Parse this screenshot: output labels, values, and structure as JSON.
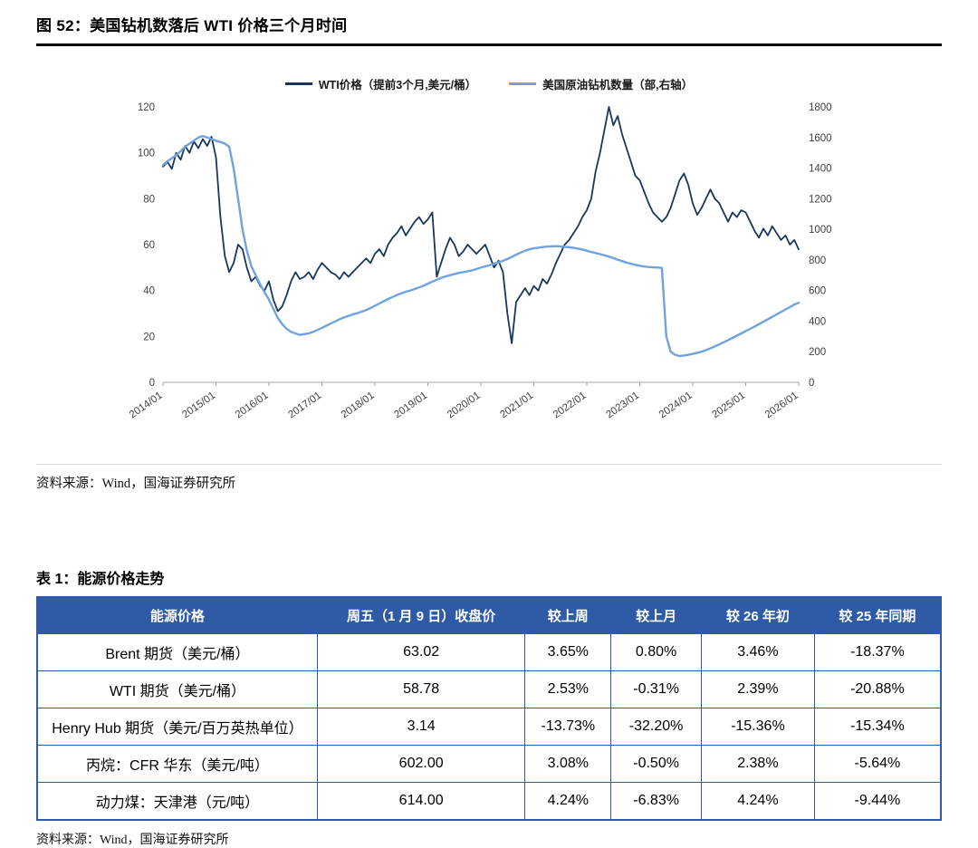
{
  "figure": {
    "title": "图 52：美国钻机数落后 WTI 价格三个月时间",
    "source": "资料来源：Wind，国海证券研究所"
  },
  "chart_data": {
    "type": "line",
    "title": "图 52：美国钻机数落后 WTI 价格三个月时间",
    "x_start": "2014/01",
    "x_step_months": 1,
    "x_tick_labels": [
      "2014/01",
      "2015/01",
      "2016/01",
      "2017/01",
      "2018/01",
      "2019/01",
      "2020/01",
      "2021/01",
      "2022/01",
      "2023/01",
      "2024/01",
      "2025/01",
      "2026/01"
    ],
    "left_axis": {
      "min": 0,
      "max": 120,
      "ticks": [
        0,
        20,
        40,
        60,
        80,
        100,
        120
      ]
    },
    "right_axis": {
      "min": 0,
      "max": 1800,
      "ticks": [
        0,
        200,
        400,
        600,
        800,
        1000,
        1200,
        1400,
        1600,
        1800
      ]
    },
    "grid": false,
    "legend_position": "top",
    "series": [
      {
        "name": "WTI价格（提前3个月,美元/桶）",
        "axis": "left",
        "color": "#17375E",
        "width": 1.8,
        "values": [
          94,
          96,
          93,
          100,
          97,
          103,
          100,
          105,
          102,
          106,
          103,
          107,
          98,
          72,
          55,
          48,
          52,
          60,
          58,
          50,
          44,
          46,
          42,
          40,
          44,
          36,
          31,
          33,
          38,
          44,
          48,
          45,
          46,
          48,
          45,
          49,
          52,
          50,
          48,
          47,
          45,
          48,
          46,
          48,
          50,
          52,
          54,
          52,
          56,
          58,
          55,
          60,
          63,
          65,
          68,
          64,
          67,
          70,
          72,
          69,
          71,
          74,
          46,
          52,
          58,
          63,
          60,
          55,
          57,
          60,
          58,
          56,
          58,
          60,
          55,
          50,
          53,
          48,
          30,
          17,
          35,
          38,
          41,
          38,
          42,
          40,
          45,
          43,
          47,
          52,
          56,
          60,
          62,
          65,
          68,
          72,
          75,
          80,
          92,
          100,
          110,
          120,
          112,
          116,
          108,
          102,
          96,
          90,
          88,
          83,
          78,
          74,
          72,
          70,
          72,
          76,
          82,
          88,
          91,
          86,
          78,
          73,
          76,
          80,
          84,
          80,
          78,
          74,
          70,
          74,
          72,
          75,
          74,
          70,
          66,
          63,
          67,
          64,
          68,
          65,
          62,
          64,
          60,
          62,
          58
        ]
      },
      {
        "name": "美国原油钻机数量（部,右轴）",
        "axis": "right",
        "color": "#6FA3DC",
        "width": 2.4,
        "values": [
          1420,
          1445,
          1465,
          1485,
          1510,
          1540,
          1560,
          1580,
          1600,
          1610,
          1600,
          1590,
          1580,
          1570,
          1560,
          1540,
          1400,
          1200,
          1000,
          860,
          760,
          700,
          640,
          590,
          540,
          480,
          420,
          380,
          350,
          330,
          320,
          310,
          315,
          320,
          330,
          342,
          356,
          370,
          384,
          398,
          412,
          424,
          434,
          444,
          452,
          462,
          472,
          486,
          500,
          515,
          530,
          545,
          558,
          570,
          582,
          592,
          600,
          610,
          620,
          632,
          645,
          658,
          670,
          682,
          692,
          700,
          708,
          715,
          720,
          726,
          732,
          740,
          750,
          758,
          766,
          774,
          784,
          794,
          806,
          820,
          834,
          848,
          860,
          870,
          876,
          880,
          884,
          887,
          889,
          890,
          888,
          886,
          883,
          879,
          874,
          868,
          860,
          852,
          845,
          838,
          830,
          822,
          812,
          802,
          792,
          783,
          775,
          768,
          762,
          757,
          754,
          752,
          750,
          748,
          300,
          200,
          180,
          172,
          175,
          180,
          186,
          193,
          200,
          210,
          222,
          235,
          248,
          262,
          276,
          290,
          305,
          320,
          335,
          350,
          365,
          380,
          396,
          412,
          428,
          444,
          460,
          476,
          492,
          508,
          520
        ]
      }
    ]
  },
  "table": {
    "title": "表 1：能源价格走势",
    "headers": [
      "能源价格",
      "周五（1 月 9 日）收盘价",
      "较上周",
      "较上月",
      "较 26 年初",
      "较 25 年同期"
    ],
    "rows": [
      [
        "Brent 期货（美元/桶）",
        "63.02",
        "3.65%",
        "0.80%",
        "3.46%",
        "-18.37%"
      ],
      [
        "WTI 期货（美元/桶）",
        "58.78",
        "2.53%",
        "-0.31%",
        "2.39%",
        "-20.88%"
      ],
      [
        "Henry Hub 期货（美元/百万英热单位）",
        "3.14",
        "-13.73%",
        "-32.20%",
        "-15.36%",
        "-15.34%"
      ],
      [
        "丙烷：CFR 华东（美元/吨）",
        "602.00",
        "3.08%",
        "-0.50%",
        "2.38%",
        "-5.64%"
      ],
      [
        "动力煤：天津港（元/吨）",
        "614.00",
        "4.24%",
        "-6.83%",
        "4.24%",
        "-9.44%"
      ]
    ],
    "source": "资料来源：Wind，国海证券研究所"
  },
  "colors": {
    "wti_line": "#17375E",
    "rig_line": "#6FA3DC",
    "table_blue": "#2E5AA6",
    "title_underline": "#000000"
  }
}
